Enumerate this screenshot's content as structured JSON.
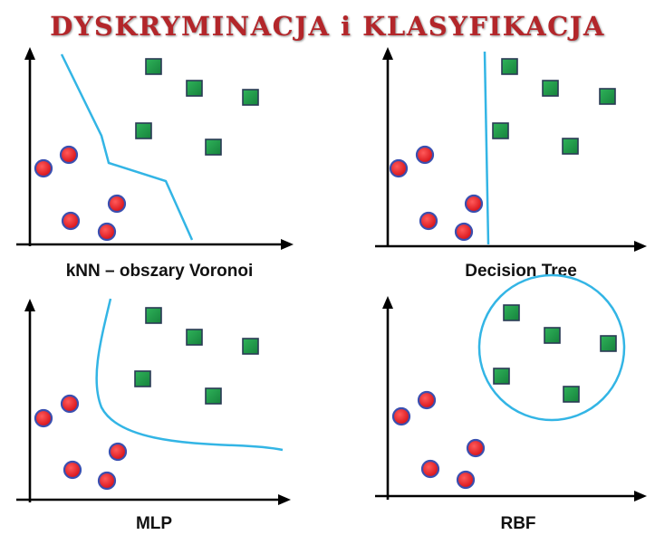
{
  "title": "DYSKRYMINACJA i KLASYFIKACJA",
  "colors": {
    "title": "#b3262a",
    "class_a_fill": "#e8141c",
    "class_a_stroke": "#3a4fb0",
    "class_b_fill": "#1f9a4a",
    "class_b_stroke": "#2a3a55",
    "boundary": "#33b5e5"
  },
  "panels": [
    {
      "id": "knn",
      "label": "kNN – obszary Voronoi",
      "boundary": "voronoi-polyline"
    },
    {
      "id": "tree",
      "label": "Decision Tree",
      "boundary": "vertical-line"
    },
    {
      "id": "mlp",
      "label": "MLP",
      "boundary": "curve"
    },
    {
      "id": "rbf",
      "label": "RBF",
      "boundary": "circle"
    }
  ]
}
